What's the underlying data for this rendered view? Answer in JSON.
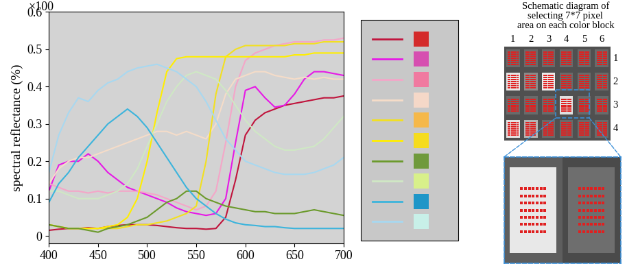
{
  "chart_data": {
    "type": "line",
    "y_label": "spectral reflectance (%)",
    "annotations": [
      "×100"
    ],
    "x": [
      400,
      410,
      420,
      430,
      440,
      450,
      460,
      470,
      480,
      490,
      500,
      510,
      520,
      530,
      540,
      550,
      560,
      570,
      580,
      590,
      600,
      610,
      620,
      630,
      640,
      650,
      660,
      670,
      680,
      690,
      700
    ],
    "xlim": [
      400,
      700
    ],
    "xticks": [
      400,
      450,
      500,
      550,
      600,
      650,
      700
    ],
    "ylim": [
      -0.02,
      0.6
    ],
    "yticks": [
      0,
      0.1,
      0.2,
      0.3,
      0.4,
      0.5,
      0.6
    ],
    "grid": false,
    "series": [
      {
        "color": "#c0143c",
        "values": [
          0.015,
          0.018,
          0.02,
          0.02,
          0.022,
          0.02,
          0.025,
          0.028,
          0.03,
          0.03,
          0.03,
          0.028,
          0.025,
          0.022,
          0.02,
          0.02,
          0.018,
          0.02,
          0.05,
          0.15,
          0.27,
          0.31,
          0.33,
          0.34,
          0.35,
          0.355,
          0.36,
          0.365,
          0.37,
          0.37,
          0.375
        ]
      },
      {
        "color": "#e619e6",
        "values": [
          0.12,
          0.19,
          0.2,
          0.2,
          0.22,
          0.2,
          0.17,
          0.15,
          0.13,
          0.12,
          0.11,
          0.1,
          0.09,
          0.075,
          0.065,
          0.06,
          0.055,
          0.06,
          0.1,
          0.25,
          0.39,
          0.4,
          0.37,
          0.345,
          0.35,
          0.38,
          0.42,
          0.44,
          0.44,
          0.435,
          0.43
        ]
      },
      {
        "color": "#f4a6c8",
        "values": [
          0.14,
          0.13,
          0.12,
          0.12,
          0.115,
          0.12,
          0.115,
          0.12,
          0.12,
          0.12,
          0.115,
          0.11,
          0.1,
          0.09,
          0.08,
          0.07,
          0.08,
          0.12,
          0.25,
          0.4,
          0.47,
          0.49,
          0.5,
          0.51,
          0.515,
          0.52,
          0.52,
          0.52,
          0.525,
          0.525,
          0.53
        ]
      },
      {
        "color": "#f5dcc8",
        "values": [
          0.14,
          0.18,
          0.2,
          0.21,
          0.21,
          0.22,
          0.23,
          0.24,
          0.25,
          0.26,
          0.27,
          0.28,
          0.28,
          0.27,
          0.28,
          0.27,
          0.26,
          0.3,
          0.38,
          0.42,
          0.43,
          0.44,
          0.44,
          0.43,
          0.425,
          0.42,
          0.425,
          0.42,
          0.425,
          0.42,
          0.42
        ]
      },
      {
        "color": "#f2e020",
        "values": [
          0.03,
          0.025,
          0.02,
          0.02,
          0.02,
          0.02,
          0.02,
          0.02,
          0.025,
          0.03,
          0.03,
          0.035,
          0.04,
          0.05,
          0.06,
          0.08,
          0.2,
          0.38,
          0.48,
          0.5,
          0.51,
          0.51,
          0.51,
          0.51,
          0.51,
          0.515,
          0.515,
          0.515,
          0.52,
          0.52,
          0.52
        ]
      },
      {
        "color": "#ffee00",
        "values": [
          0.03,
          0.025,
          0.02,
          0.02,
          0.02,
          0.02,
          0.025,
          0.03,
          0.05,
          0.1,
          0.2,
          0.33,
          0.44,
          0.475,
          0.48,
          0.48,
          0.48,
          0.48,
          0.48,
          0.48,
          0.48,
          0.48,
          0.48,
          0.48,
          0.48,
          0.485,
          0.485,
          0.49,
          0.49,
          0.49,
          0.49
        ]
      },
      {
        "color": "#6b9a2c",
        "values": [
          0.03,
          0.025,
          0.02,
          0.02,
          0.015,
          0.01,
          0.02,
          0.025,
          0.03,
          0.04,
          0.05,
          0.07,
          0.09,
          0.1,
          0.12,
          0.12,
          0.1,
          0.09,
          0.08,
          0.075,
          0.07,
          0.065,
          0.065,
          0.06,
          0.06,
          0.06,
          0.065,
          0.07,
          0.065,
          0.06,
          0.055
        ]
      },
      {
        "color": "#cfe8c4",
        "values": [
          0.12,
          0.12,
          0.11,
          0.1,
          0.1,
          0.1,
          0.11,
          0.12,
          0.14,
          0.18,
          0.24,
          0.3,
          0.36,
          0.4,
          0.43,
          0.44,
          0.43,
          0.42,
          0.39,
          0.35,
          0.31,
          0.28,
          0.26,
          0.24,
          0.23,
          0.23,
          0.235,
          0.24,
          0.26,
          0.29,
          0.32
        ]
      },
      {
        "color": "#3cb4dc",
        "values": [
          0.09,
          0.14,
          0.17,
          0.21,
          0.24,
          0.27,
          0.3,
          0.32,
          0.34,
          0.32,
          0.29,
          0.25,
          0.21,
          0.17,
          0.13,
          0.1,
          0.08,
          0.06,
          0.045,
          0.035,
          0.03,
          0.028,
          0.025,
          0.025,
          0.022,
          0.02,
          0.02,
          0.02,
          0.02,
          0.02,
          0.02
        ]
      },
      {
        "color": "#a8d8f0",
        "values": [
          0.17,
          0.27,
          0.33,
          0.37,
          0.36,
          0.39,
          0.41,
          0.42,
          0.44,
          0.45,
          0.455,
          0.46,
          0.45,
          0.44,
          0.42,
          0.4,
          0.36,
          0.31,
          0.26,
          0.23,
          0.2,
          0.19,
          0.18,
          0.17,
          0.165,
          0.165,
          0.165,
          0.17,
          0.18,
          0.19,
          0.21
        ]
      }
    ]
  },
  "legend_panel": {
    "colors": [
      "#d42b2b",
      "#d64fb0",
      "#f07aa0",
      "#f5d8c8",
      "#f5b84a",
      "#f5dc1e",
      "#6f9a3c",
      "#d8f08a",
      "#1e96c8",
      "#c8f0e8"
    ]
  },
  "schematic": {
    "title": "Schematic diagram of\nselecting 7*7 pixel\narea on each color block",
    "columns": [
      1,
      2,
      3,
      4,
      5,
      6
    ],
    "rows": [
      1,
      2,
      3,
      4
    ],
    "pixel_grid": 7
  }
}
